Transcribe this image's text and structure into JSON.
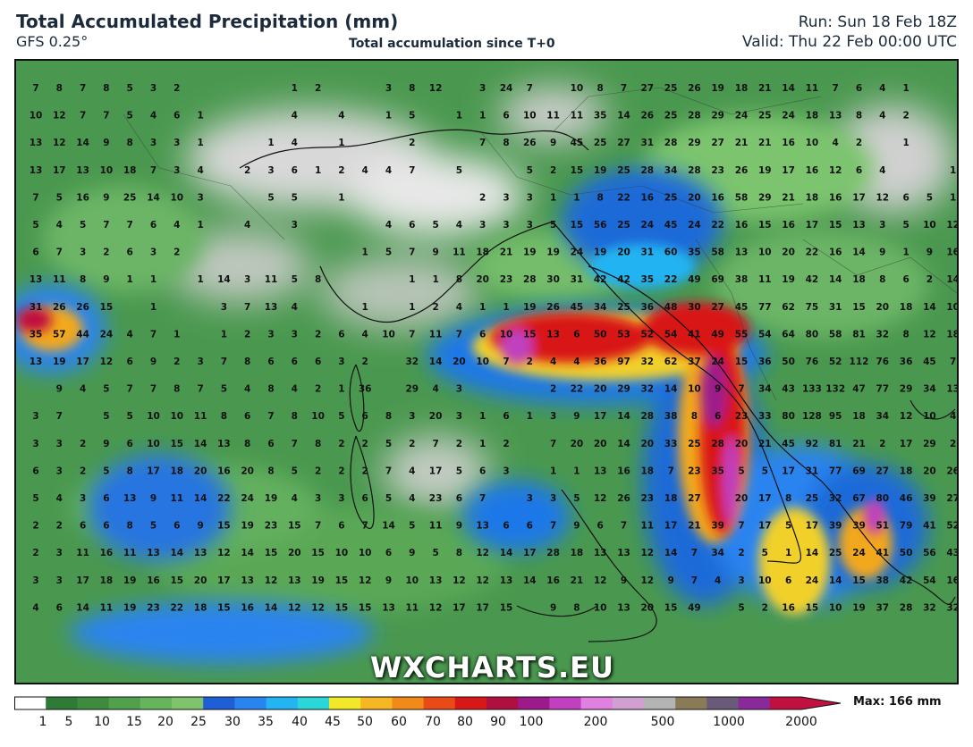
{
  "header": {
    "title": "Total Accumulated Precipitation (mm)",
    "model": "GFS 0.25°",
    "subtitle": "Total accumulation since T+0",
    "run": "Run: Sun 18 Feb 18Z",
    "valid": "Valid: Thu 22 Feb 00:00 UTC"
  },
  "watermark": "WXCHARTS.EU",
  "legend": {
    "max_label": "Max: 166 mm",
    "ticks": [
      "1",
      "5",
      "10",
      "15",
      "20",
      "25",
      "30",
      "35",
      "40",
      "45",
      "50",
      "60",
      "70",
      "80",
      "90",
      "100",
      "200",
      "500",
      "1000",
      "2000"
    ],
    "colors": [
      "#ffffff",
      "#2f7a36",
      "#3e8a3f",
      "#51a04c",
      "#66b55c",
      "#7fc46c",
      "#1e5fd8",
      "#2a84f0",
      "#23b4f2",
      "#2ad6d8",
      "#f2e82a",
      "#f6b822",
      "#f28a1a",
      "#ea4a16",
      "#d81818",
      "#b01040",
      "#9c1a8c",
      "#c040c0",
      "#e080e0",
      "#d0a0d0",
      "#b4b4b4",
      "#8a7a58",
      "#6a5a7a",
      "#8a2a9a",
      "#c01040"
    ]
  },
  "map": {
    "grid_values": [
      [
        "7",
        "8",
        "7",
        "8",
        "5",
        "3",
        "2",
        "",
        "",
        "",
        "",
        "1",
        "2",
        "",
        "",
        "3",
        "8",
        "12",
        "",
        "3",
        "24",
        "7",
        "",
        "10",
        "8",
        "7",
        "27",
        "25",
        "26",
        "19",
        "18",
        "21",
        "14",
        "11",
        "7",
        "6",
        "4",
        "1",
        "",
        ""
      ],
      [
        "10",
        "12",
        "7",
        "7",
        "5",
        "4",
        "6",
        "1",
        "",
        "",
        "",
        "4",
        "",
        "4",
        "",
        "1",
        "5",
        "",
        "1",
        "1",
        "6",
        "10",
        "11",
        "11",
        "35",
        "14",
        "26",
        "25",
        "28",
        "29",
        "24",
        "25",
        "24",
        "18",
        "13",
        "8",
        "4",
        "2",
        "",
        ""
      ],
      [
        "13",
        "12",
        "14",
        "9",
        "8",
        "3",
        "3",
        "1",
        "",
        "",
        "1",
        "4",
        "",
        "1",
        "",
        "",
        "2",
        "",
        "",
        "7",
        "8",
        "26",
        "9",
        "45",
        "25",
        "27",
        "31",
        "28",
        "29",
        "27",
        "21",
        "21",
        "16",
        "10",
        "4",
        "2",
        "",
        "1",
        "",
        ""
      ],
      [
        "13",
        "17",
        "13",
        "10",
        "18",
        "7",
        "3",
        "4",
        "",
        "2",
        "3",
        "6",
        "1",
        "2",
        "4",
        "4",
        "7",
        "",
        "5",
        "",
        "",
        "5",
        "2",
        "15",
        "19",
        "25",
        "28",
        "34",
        "28",
        "23",
        "26",
        "19",
        "17",
        "16",
        "12",
        "6",
        "4",
        "",
        "",
        "1"
      ],
      [
        "7",
        "5",
        "16",
        "9",
        "25",
        "14",
        "10",
        "3",
        "",
        "",
        "5",
        "5",
        "",
        "1",
        "",
        "",
        "",
        "",
        "",
        "2",
        "3",
        "3",
        "1",
        "1",
        "8",
        "22",
        "16",
        "25",
        "20",
        "16",
        "58",
        "29",
        "21",
        "18",
        "16",
        "17",
        "12",
        "6",
        "5",
        "1"
      ],
      [
        "5",
        "4",
        "5",
        "7",
        "7",
        "6",
        "4",
        "1",
        "",
        "4",
        "",
        "3",
        "",
        "",
        "",
        "4",
        "6",
        "5",
        "4",
        "3",
        "3",
        "3",
        "5",
        "15",
        "56",
        "25",
        "24",
        "45",
        "24",
        "22",
        "16",
        "15",
        "16",
        "17",
        "15",
        "13",
        "3",
        "5",
        "10",
        "12"
      ],
      [
        "6",
        "7",
        "3",
        "2",
        "6",
        "3",
        "2",
        "",
        "",
        "",
        "",
        "",
        "",
        "",
        "1",
        "5",
        "7",
        "9",
        "11",
        "18",
        "21",
        "19",
        "19",
        "24",
        "19",
        "20",
        "31",
        "60",
        "35",
        "58",
        "13",
        "10",
        "20",
        "22",
        "16",
        "14",
        "9",
        "1",
        "9",
        "16"
      ],
      [
        "13",
        "11",
        "8",
        "9",
        "1",
        "1",
        "",
        "1",
        "14",
        "3",
        "11",
        "5",
        "8",
        "",
        "",
        "",
        "1",
        "1",
        "8",
        "20",
        "23",
        "28",
        "30",
        "31",
        "42",
        "42",
        "35",
        "22",
        "49",
        "69",
        "38",
        "11",
        "19",
        "42",
        "14",
        "18",
        "8",
        "6",
        "2",
        "14"
      ],
      [
        "31",
        "26",
        "26",
        "15",
        "",
        "1",
        "",
        "",
        "3",
        "7",
        "13",
        "4",
        "",
        "",
        "1",
        "",
        "1",
        "2",
        "4",
        "1",
        "1",
        "19",
        "26",
        "45",
        "34",
        "25",
        "36",
        "48",
        "30",
        "27",
        "45",
        "77",
        "62",
        "75",
        "31",
        "15",
        "20",
        "18",
        "14",
        "10"
      ],
      [
        "35",
        "57",
        "44",
        "24",
        "4",
        "7",
        "1",
        "",
        "1",
        "2",
        "3",
        "3",
        "2",
        "6",
        "4",
        "10",
        "7",
        "11",
        "7",
        "6",
        "10",
        "15",
        "13",
        "6",
        "50",
        "53",
        "52",
        "54",
        "41",
        "49",
        "55",
        "54",
        "64",
        "80",
        "58",
        "81",
        "32",
        "8",
        "12",
        "18"
      ],
      [
        "13",
        "19",
        "17",
        "12",
        "6",
        "9",
        "2",
        "3",
        "7",
        "8",
        "6",
        "6",
        "6",
        "3",
        "2",
        "",
        "32",
        "14",
        "20",
        "10",
        "7",
        "2",
        "4",
        "4",
        "36",
        "97",
        "32",
        "62",
        "37",
        "24",
        "15",
        "36",
        "50",
        "76",
        "52",
        "112",
        "76",
        "36",
        "45",
        "7"
      ],
      [
        "",
        "9",
        "4",
        "5",
        "7",
        "7",
        "8",
        "7",
        "5",
        "4",
        "8",
        "4",
        "2",
        "1",
        "36",
        "",
        "29",
        "4",
        "3",
        "",
        "",
        "",
        "2",
        "22",
        "20",
        "29",
        "32",
        "14",
        "10",
        "9",
        "7",
        "34",
        "43",
        "133",
        "132",
        "47",
        "77",
        "29",
        "34",
        "13"
      ],
      [
        "3",
        "7",
        "",
        "5",
        "5",
        "10",
        "10",
        "11",
        "8",
        "6",
        "7",
        "8",
        "10",
        "5",
        "6",
        "8",
        "3",
        "20",
        "3",
        "1",
        "6",
        "1",
        "3",
        "9",
        "17",
        "14",
        "28",
        "38",
        "8",
        "6",
        "23",
        "33",
        "80",
        "128",
        "95",
        "18",
        "34",
        "12",
        "10",
        "4"
      ],
      [
        "3",
        "3",
        "2",
        "9",
        "6",
        "10",
        "15",
        "14",
        "13",
        "8",
        "6",
        "7",
        "8",
        "2",
        "2",
        "5",
        "2",
        "7",
        "2",
        "1",
        "2",
        "",
        "7",
        "20",
        "20",
        "14",
        "20",
        "33",
        "25",
        "28",
        "20",
        "21",
        "45",
        "92",
        "81",
        "21",
        "2",
        "17",
        "29",
        "2"
      ],
      [
        "6",
        "3",
        "2",
        "5",
        "8",
        "17",
        "18",
        "20",
        "16",
        "20",
        "8",
        "5",
        "2",
        "2",
        "2",
        "7",
        "4",
        "17",
        "5",
        "6",
        "3",
        "",
        "1",
        "1",
        "13",
        "16",
        "18",
        "7",
        "23",
        "35",
        "5",
        "5",
        "17",
        "31",
        "77",
        "69",
        "27",
        "18",
        "20",
        "26"
      ],
      [
        "5",
        "4",
        "3",
        "6",
        "13",
        "9",
        "11",
        "14",
        "22",
        "24",
        "19",
        "4",
        "3",
        "3",
        "6",
        "5",
        "4",
        "23",
        "6",
        "7",
        "",
        "3",
        "3",
        "5",
        "12",
        "26",
        "23",
        "18",
        "27",
        "",
        "20",
        "17",
        "8",
        "25",
        "32",
        "67",
        "80",
        "46",
        "39",
        "27"
      ],
      [
        "2",
        "2",
        "6",
        "6",
        "8",
        "5",
        "6",
        "9",
        "15",
        "19",
        "23",
        "15",
        "7",
        "6",
        "7",
        "14",
        "5",
        "11",
        "9",
        "13",
        "6",
        "6",
        "7",
        "9",
        "6",
        "7",
        "11",
        "17",
        "21",
        "39",
        "7",
        "17",
        "5",
        "17",
        "39",
        "39",
        "51",
        "79",
        "41",
        "52"
      ],
      [
        "2",
        "3",
        "11",
        "16",
        "11",
        "13",
        "14",
        "13",
        "12",
        "14",
        "15",
        "20",
        "15",
        "10",
        "10",
        "6",
        "9",
        "5",
        "8",
        "12",
        "14",
        "17",
        "28",
        "18",
        "13",
        "13",
        "12",
        "14",
        "7",
        "34",
        "2",
        "5",
        "1",
        "14",
        "25",
        "24",
        "41",
        "50",
        "56",
        "43"
      ],
      [
        "3",
        "3",
        "17",
        "18",
        "19",
        "16",
        "15",
        "20",
        "17",
        "13",
        "12",
        "13",
        "19",
        "15",
        "12",
        "9",
        "10",
        "13",
        "12",
        "12",
        "13",
        "14",
        "16",
        "21",
        "12",
        "9",
        "12",
        "9",
        "7",
        "4",
        "3",
        "10",
        "6",
        "24",
        "14",
        "15",
        "38",
        "42",
        "54",
        "16"
      ],
      [
        "4",
        "6",
        "14",
        "11",
        "19",
        "23",
        "22",
        "18",
        "15",
        "16",
        "14",
        "12",
        "12",
        "15",
        "15",
        "13",
        "11",
        "12",
        "17",
        "17",
        "15",
        "",
        "9",
        "8",
        "10",
        "13",
        "20",
        "15",
        "49",
        "",
        "5",
        "2",
        "16",
        "15",
        "10",
        "19",
        "37",
        "28",
        "32",
        "32"
      ]
    ]
  }
}
